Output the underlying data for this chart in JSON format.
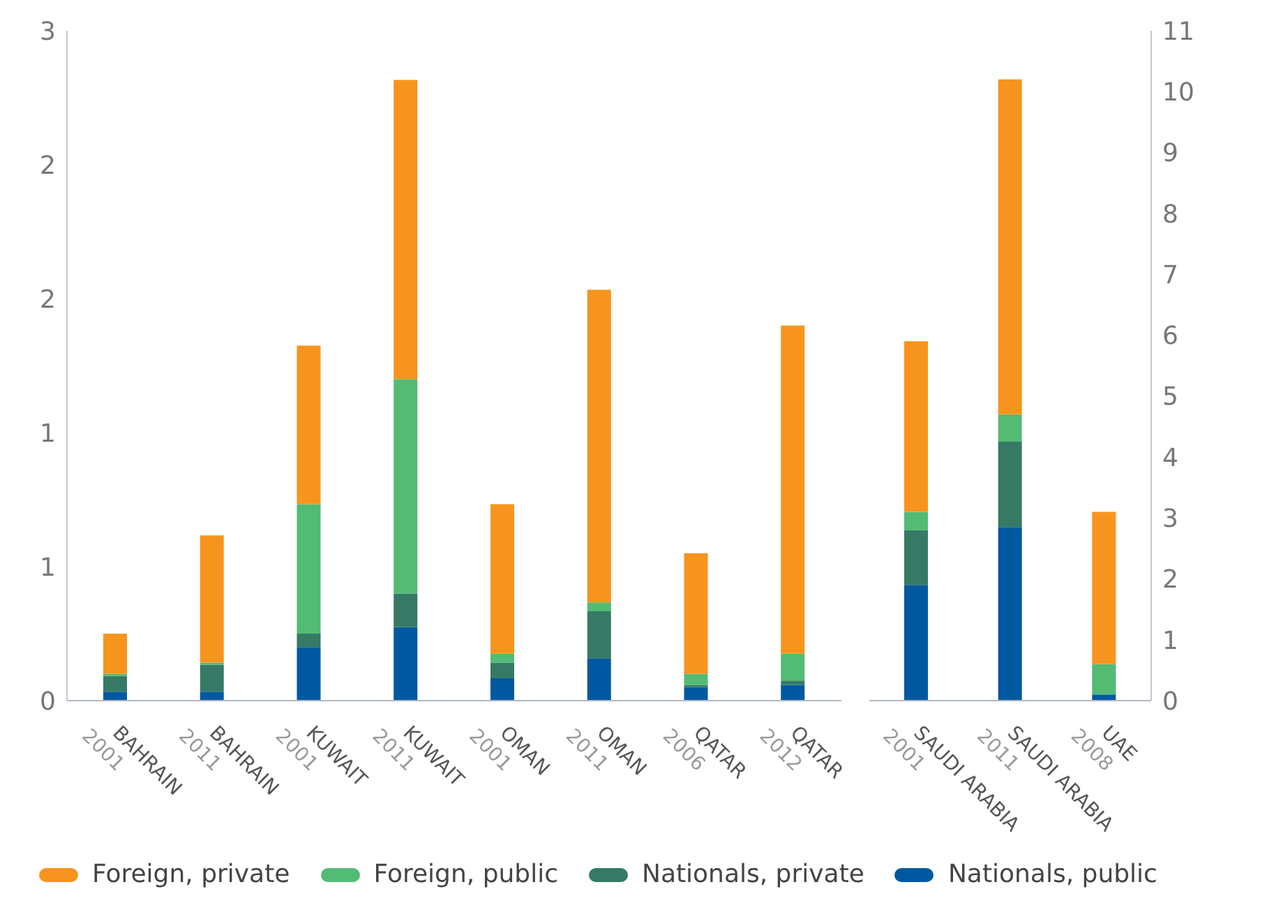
{
  "chart_data": [
    {
      "type": "bar",
      "stacked": true,
      "legend": "bottom",
      "categories": [
        "BAHRAIN 2001",
        "BAHRAIN 2011",
        "KUWAIT 2001",
        "KUWAIT 2011",
        "OMAN 2001",
        "OMAN 2011",
        "QATAR 2006",
        "QATAR 2012"
      ],
      "series": [
        {
          "name": "Nationals, public",
          "color": "#0059a0",
          "values": [
            0.04,
            0.04,
            0.24,
            0.33,
            0.1,
            0.19,
            0.06,
            0.07
          ]
        },
        {
          "name": "Nationals, private",
          "color": "#367a66",
          "values": [
            0.07,
            0.12,
            0.06,
            0.15,
            0.07,
            0.21,
            0.01,
            0.02
          ]
        },
        {
          "name": "Foreign, public",
          "color": "#52bb74",
          "values": [
            0.01,
            0.01,
            0.58,
            0.96,
            0.04,
            0.04,
            0.05,
            0.12
          ]
        },
        {
          "name": "Foreign, private",
          "color": "#f7941d",
          "values": [
            0.18,
            0.57,
            0.71,
            1.34,
            0.67,
            1.4,
            0.54,
            1.47
          ]
        }
      ],
      "ylim": [
        0,
        3
      ],
      "yticks": [
        0,
        {
          "value": 0.6,
          "label": "1"
        },
        {
          "value": 1.2,
          "label": "1"
        },
        {
          "value": 1.8,
          "label": "2"
        },
        {
          "value": 2.4,
          "label": "2"
        },
        3
      ]
    },
    {
      "type": "bar",
      "stacked": true,
      "categories": [
        "SAUDI ARABIA 2001",
        "SAUDI ARABIA 2011",
        "UAE 2008"
      ],
      "series": [
        {
          "color": "#0059a0",
          "values": [
            1.9,
            2.85,
            0.1
          ]
        },
        {
          "color": "#367a66",
          "values": [
            0.9,
            1.4,
            0
          ]
        },
        {
          "color": "#52bb74",
          "values": [
            0.3,
            0.45,
            0.5
          ]
        },
        {
          "color": "#f7941d",
          "values": [
            2.8,
            5.5,
            2.5
          ]
        }
      ],
      "ylim": [
        0,
        11
      ],
      "yticks": [
        0,
        1,
        2,
        3,
        4,
        5,
        6,
        7,
        8,
        9,
        10,
        11
      ]
    }
  ]
}
